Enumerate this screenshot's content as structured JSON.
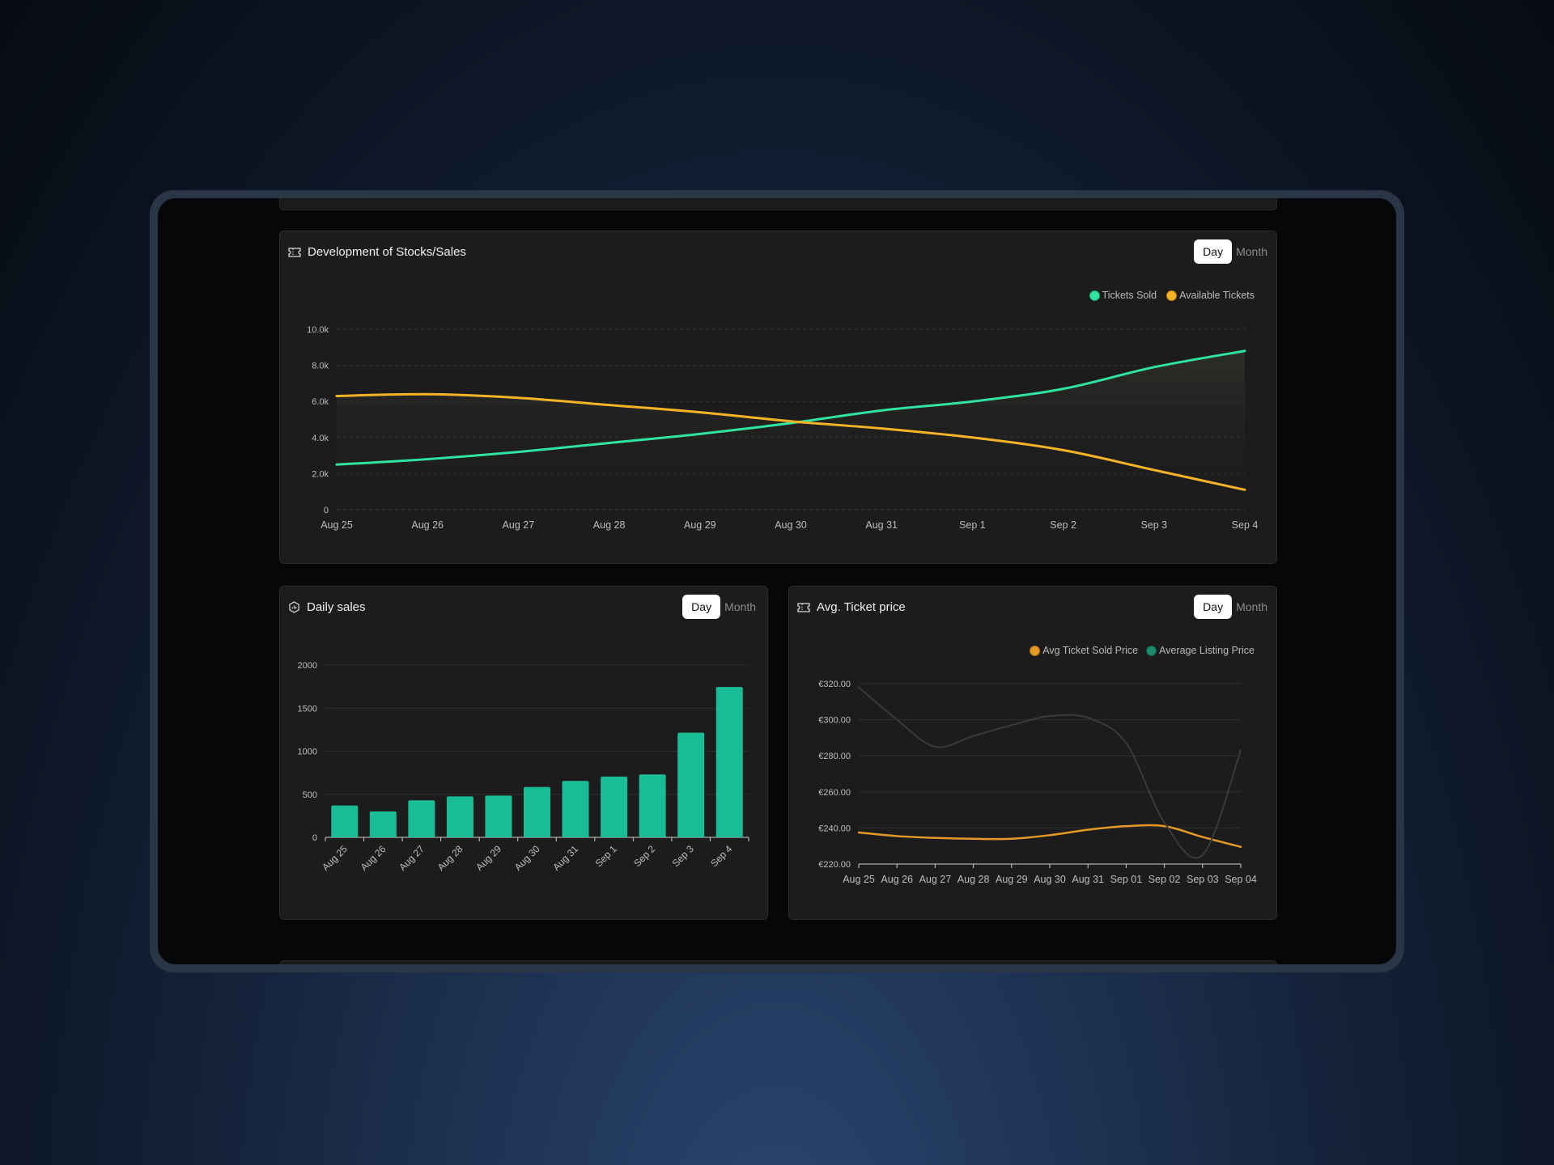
{
  "colors": {
    "green": "#2fe3a0",
    "orange": "#f5b325",
    "bar": "#19bd95",
    "avg_sold": "#e59a25",
    "avg_listing": "#3a3a3a",
    "grid": "#343434",
    "axis_text": "#bdbdbd"
  },
  "stocks": {
    "title": "Development of Stocks/Sales",
    "icon": "ticket-icon",
    "toggle": {
      "day": "Day",
      "month": "Month"
    },
    "legend": [
      "Tickets Sold",
      "Available Tickets"
    ]
  },
  "daily": {
    "title": "Daily sales",
    "icon": "bar-chart-icon",
    "toggle": {
      "day": "Day",
      "month": "Month"
    }
  },
  "avgprice": {
    "title": "Avg. Ticket price",
    "icon": "ticket-icon",
    "toggle": {
      "day": "Day",
      "month": "Month"
    },
    "legend": [
      "Avg Ticket Sold Price",
      "Average Listing Price"
    ]
  },
  "chart_data": [
    {
      "type": "area",
      "title": "Development of Stocks/Sales",
      "categories": [
        "Aug 25",
        "Aug 26",
        "Aug 27",
        "Aug 28",
        "Aug 29",
        "Aug 30",
        "Aug 31",
        "Sep 1",
        "Sep 2",
        "Sep 3",
        "Sep 4"
      ],
      "y_ticks": [
        "0",
        "2.0k",
        "4.0k",
        "6.0k",
        "8.0k",
        "10.0k"
      ],
      "ylim": [
        0,
        10000
      ],
      "grid": true,
      "legend_position": "top-right",
      "series": [
        {
          "name": "Tickets Sold",
          "values": [
            2500,
            2800,
            3200,
            3700,
            4200,
            4800,
            5500,
            6000,
            6700,
            7900,
            8800
          ]
        },
        {
          "name": "Available Tickets",
          "values": [
            6300,
            6400,
            6200,
            5800,
            5400,
            4900,
            4500,
            4000,
            3300,
            2200,
            1100
          ]
        }
      ]
    },
    {
      "type": "bar",
      "title": "Daily sales",
      "categories": [
        "Aug 25",
        "Aug 26",
        "Aug 27",
        "Aug 28",
        "Aug 29",
        "Aug 30",
        "Aug 31",
        "Sep 1",
        "Sep 2",
        "Sep 3",
        "Sep 4"
      ],
      "y_ticks": [
        "0",
        "500",
        "1000",
        "1500",
        "2000"
      ],
      "ylim": [
        0,
        2000
      ],
      "grid": true,
      "values": [
        370,
        300,
        430,
        475,
        485,
        585,
        655,
        705,
        730,
        1215,
        1745
      ]
    },
    {
      "type": "line",
      "title": "Avg. Ticket price",
      "categories": [
        "Aug 25",
        "Aug 26",
        "Aug 27",
        "Aug 28",
        "Aug 29",
        "Aug 30",
        "Aug 31",
        "Sep 01",
        "Sep 02",
        "Sep 03",
        "Sep 04"
      ],
      "y_ticks": [
        "€220.00",
        "€240.00",
        "€260.00",
        "€280.00",
        "€300.00",
        "€320.00"
      ],
      "ylim": [
        220,
        320
      ],
      "grid": true,
      "legend_position": "top-right",
      "series": [
        {
          "name": "Avg Ticket Sold Price",
          "values": [
            237.5,
            235.5,
            234.5,
            234,
            234,
            236,
            239,
            241,
            241,
            235,
            229.5
          ]
        },
        {
          "name": "Average Listing Price",
          "values": [
            318,
            300,
            285,
            291,
            297,
            302,
            301,
            287,
            243,
            225,
            283
          ]
        }
      ]
    }
  ]
}
